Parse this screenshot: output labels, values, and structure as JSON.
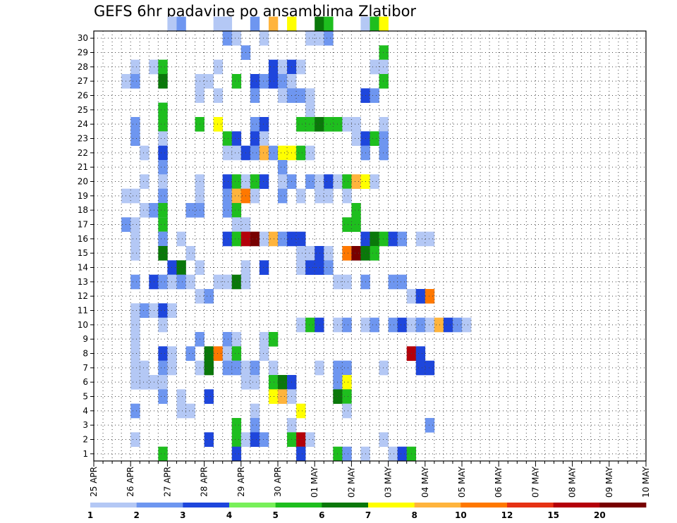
{
  "chart_data": {
    "type": "heatmap",
    "title": "GEFS 6hr padavine po ansamblima Zlatibor",
    "xlabel": "",
    "ylabel": "",
    "y_categories": [
      1,
      2,
      3,
      4,
      5,
      6,
      7,
      8,
      9,
      10,
      11,
      12,
      13,
      14,
      15,
      16,
      17,
      18,
      19,
      20,
      21,
      22,
      23,
      24,
      25,
      26,
      27,
      28,
      29,
      30
    ],
    "x_tick_labels": [
      "25 APR",
      "26 APR",
      "27 APR",
      "28 APR",
      "29 APR",
      "30 APR",
      "01 MAY",
      "02 MAY",
      "03 MAY",
      "04 MAY",
      "05 MAY",
      "06 MAY",
      "07 MAY",
      "08 MAY",
      "09 MAY",
      "10 MAY"
    ],
    "x_unit": "6-hour step from 25 APR 00Z",
    "grid": true,
    "colorbar": {
      "labels": [
        "1",
        "2",
        "3",
        "4",
        "5",
        "6",
        "7",
        "8",
        "10",
        "12",
        "15",
        "20"
      ],
      "colors": [
        "#b4c8f5",
        "#6e96f0",
        "#1e46dc",
        "#78f05a",
        "#1ebe1e",
        "#0a780a",
        "#ffff00",
        "#ffb43c",
        "#ff7800",
        "#e63214",
        "#b4000a",
        "#780000"
      ]
    },
    "cells": [
      [
        8,
        30,
        1
      ],
      [
        9,
        30,
        2
      ],
      [
        13,
        30,
        1
      ],
      [
        14,
        30,
        1
      ],
      [
        17,
        30,
        2
      ],
      [
        19,
        30,
        9
      ],
      [
        21,
        30,
        7
      ],
      [
        24,
        30,
        6
      ],
      [
        25,
        30,
        5
      ],
      [
        29,
        30,
        1
      ],
      [
        30,
        30,
        5
      ],
      [
        31,
        30,
        7
      ],
      [
        14,
        29,
        2
      ],
      [
        15,
        29,
        1
      ],
      [
        18,
        29,
        1
      ],
      [
        23,
        29,
        1
      ],
      [
        24,
        29,
        1
      ],
      [
        25,
        29,
        2
      ],
      [
        16,
        28,
        2
      ],
      [
        31,
        28,
        5
      ],
      [
        4,
        27,
        1
      ],
      [
        6,
        27,
        1
      ],
      [
        7,
        27,
        5
      ],
      [
        13,
        27,
        1
      ],
      [
        19,
        27,
        3
      ],
      [
        20,
        27,
        1
      ],
      [
        21,
        27,
        3
      ],
      [
        22,
        27,
        1
      ],
      [
        30,
        27,
        1
      ],
      [
        31,
        27,
        1
      ],
      [
        3,
        26,
        1
      ],
      [
        4,
        26,
        2
      ],
      [
        7,
        26,
        6
      ],
      [
        11,
        26,
        1
      ],
      [
        12,
        26,
        1
      ],
      [
        15,
        26,
        5
      ],
      [
        17,
        26,
        3
      ],
      [
        18,
        26,
        2
      ],
      [
        19,
        26,
        3
      ],
      [
        20,
        26,
        2
      ],
      [
        21,
        26,
        1
      ],
      [
        31,
        26,
        5
      ],
      [
        11,
        25,
        1
      ],
      [
        13,
        25,
        1
      ],
      [
        17,
        25,
        2
      ],
      [
        20,
        25,
        1
      ],
      [
        21,
        25,
        2
      ],
      [
        22,
        25,
        2
      ],
      [
        23,
        25,
        1
      ],
      [
        29,
        25,
        3
      ],
      [
        30,
        25,
        2
      ],
      [
        7,
        24,
        2
      ],
      [
        7,
        24,
        5
      ],
      [
        23,
        24,
        1
      ],
      [
        4,
        23,
        2
      ],
      [
        7,
        23,
        1
      ],
      [
        7,
        23,
        5
      ],
      [
        11,
        23,
        5
      ],
      [
        13,
        23,
        7
      ],
      [
        17,
        23,
        2
      ],
      [
        18,
        23,
        3
      ],
      [
        22,
        23,
        5
      ],
      [
        23,
        23,
        5
      ],
      [
        24,
        23,
        6
      ],
      [
        25,
        23,
        5
      ],
      [
        26,
        23,
        5
      ],
      [
        27,
        23,
        1
      ],
      [
        28,
        23,
        1
      ],
      [
        31,
        23,
        1
      ],
      [
        4,
        22,
        2
      ],
      [
        7,
        22,
        1
      ],
      [
        14,
        22,
        5
      ],
      [
        15,
        22,
        3
      ],
      [
        17,
        22,
        3
      ],
      [
        18,
        22,
        1
      ],
      [
        28,
        22,
        1
      ],
      [
        29,
        22,
        3
      ],
      [
        30,
        22,
        5
      ],
      [
        31,
        22,
        2
      ],
      [
        5,
        21,
        1
      ],
      [
        7,
        21,
        1
      ],
      [
        7,
        21,
        3
      ],
      [
        14,
        21,
        1
      ],
      [
        15,
        21,
        1
      ],
      [
        16,
        21,
        3
      ],
      [
        17,
        21,
        2
      ],
      [
        18,
        21,
        8
      ],
      [
        19,
        21,
        2
      ],
      [
        20,
        21,
        7
      ],
      [
        21,
        21,
        7
      ],
      [
        22,
        21,
        5
      ],
      [
        23,
        21,
        1
      ],
      [
        29,
        21,
        2
      ],
      [
        31,
        21,
        2
      ],
      [
        7,
        20,
        2
      ],
      [
        20,
        20,
        2
      ],
      [
        5,
        19,
        1
      ],
      [
        7,
        19,
        1
      ],
      [
        11,
        19,
        1
      ],
      [
        14,
        19,
        3
      ],
      [
        15,
        19,
        5
      ],
      [
        16,
        19,
        1
      ],
      [
        17,
        19,
        5
      ],
      [
        18,
        19,
        3
      ],
      [
        20,
        19,
        1
      ],
      [
        21,
        19,
        2
      ],
      [
        23,
        19,
        2
      ],
      [
        24,
        19,
        1
      ],
      [
        25,
        19,
        3
      ],
      [
        26,
        19,
        1
      ],
      [
        27,
        19,
        5
      ],
      [
        28,
        19,
        8
      ],
      [
        29,
        19,
        7
      ],
      [
        30,
        19,
        1
      ],
      [
        3,
        18,
        1
      ],
      [
        4,
        18,
        1
      ],
      [
        7,
        18,
        1
      ],
      [
        7,
        18,
        2
      ],
      [
        11,
        18,
        1
      ],
      [
        14,
        18,
        2
      ],
      [
        15,
        18,
        8
      ],
      [
        16,
        18,
        10
      ],
      [
        17,
        18,
        1
      ],
      [
        20,
        18,
        2
      ],
      [
        22,
        18,
        1
      ],
      [
        24,
        18,
        1
      ],
      [
        25,
        18,
        1
      ],
      [
        27,
        18,
        1
      ],
      [
        5,
        17,
        1
      ],
      [
        6,
        17,
        2
      ],
      [
        7,
        17,
        1
      ],
      [
        7,
        17,
        5
      ],
      [
        10,
        17,
        2
      ],
      [
        11,
        17,
        2
      ],
      [
        14,
        17,
        2
      ],
      [
        15,
        17,
        5
      ],
      [
        28,
        17,
        5
      ],
      [
        3,
        16,
        2
      ],
      [
        4,
        16,
        1
      ],
      [
        7,
        16,
        1
      ],
      [
        7,
        16,
        5
      ],
      [
        15,
        16,
        1
      ],
      [
        16,
        16,
        1
      ],
      [
        27,
        16,
        5
      ],
      [
        28,
        16,
        5
      ],
      [
        4,
        15,
        1
      ],
      [
        7,
        15,
        1
      ],
      [
        7,
        15,
        2
      ],
      [
        9,
        15,
        1
      ],
      [
        14,
        15,
        3
      ],
      [
        15,
        15,
        5
      ],
      [
        16,
        15,
        15
      ],
      [
        17,
        15,
        20
      ],
      [
        18,
        15,
        1
      ],
      [
        19,
        15,
        8
      ],
      [
        20,
        15,
        2
      ],
      [
        21,
        15,
        3
      ],
      [
        22,
        15,
        3
      ],
      [
        29,
        15,
        3
      ],
      [
        30,
        15,
        6
      ],
      [
        31,
        15,
        5
      ],
      [
        32,
        15,
        3
      ],
      [
        33,
        15,
        2
      ],
      [
        35,
        15,
        1
      ],
      [
        36,
        15,
        1
      ],
      [
        4,
        14,
        1
      ],
      [
        7,
        14,
        6
      ],
      [
        10,
        14,
        1
      ],
      [
        22,
        14,
        1
      ],
      [
        23,
        14,
        1
      ],
      [
        24,
        14,
        3
      ],
      [
        25,
        14,
        1
      ],
      [
        27,
        14,
        10
      ],
      [
        28,
        14,
        20
      ],
      [
        29,
        14,
        6
      ],
      [
        30,
        14,
        5
      ],
      [
        8,
        13,
        3
      ],
      [
        9,
        13,
        6
      ],
      [
        11,
        13,
        1
      ],
      [
        16,
        13,
        1
      ],
      [
        18,
        13,
        3
      ],
      [
        22,
        13,
        1
      ],
      [
        23,
        13,
        3
      ],
      [
        24,
        13,
        3
      ],
      [
        25,
        13,
        2
      ],
      [
        4,
        12,
        2
      ],
      [
        6,
        12,
        3
      ],
      [
        7,
        12,
        2
      ],
      [
        8,
        12,
        1
      ],
      [
        9,
        12,
        2
      ],
      [
        10,
        12,
        1
      ],
      [
        13,
        12,
        1
      ],
      [
        14,
        12,
        1
      ],
      [
        15,
        12,
        6
      ],
      [
        16,
        12,
        1
      ],
      [
        26,
        12,
        1
      ],
      [
        27,
        12,
        1
      ],
      [
        29,
        12,
        2
      ],
      [
        32,
        12,
        2
      ],
      [
        33,
        12,
        2
      ],
      [
        11,
        11,
        1
      ],
      [
        12,
        11,
        2
      ],
      [
        34,
        11,
        1
      ],
      [
        35,
        11,
        3
      ],
      [
        36,
        11,
        10
      ],
      [
        4,
        10,
        1
      ],
      [
        5,
        10,
        2
      ],
      [
        6,
        10,
        1
      ],
      [
        7,
        10,
        3
      ],
      [
        8,
        10,
        1
      ],
      [
        4,
        9,
        1
      ],
      [
        7,
        9,
        1
      ],
      [
        22,
        9,
        1
      ],
      [
        23,
        9,
        5
      ],
      [
        24,
        9,
        3
      ],
      [
        26,
        9,
        1
      ],
      [
        27,
        9,
        2
      ],
      [
        29,
        9,
        1
      ],
      [
        30,
        9,
        2
      ],
      [
        32,
        9,
        2
      ],
      [
        33,
        9,
        3
      ],
      [
        34,
        9,
        1
      ],
      [
        35,
        9,
        2
      ],
      [
        36,
        9,
        1
      ],
      [
        37,
        9,
        8
      ],
      [
        38,
        9,
        3
      ],
      [
        39,
        9,
        2
      ],
      [
        40,
        9,
        1
      ],
      [
        4,
        8,
        1
      ],
      [
        11,
        8,
        2
      ],
      [
        14,
        8,
        2
      ],
      [
        15,
        8,
        1
      ],
      [
        18,
        8,
        1
      ],
      [
        19,
        8,
        5
      ],
      [
        4,
        7,
        1
      ],
      [
        7,
        7,
        3
      ],
      [
        8,
        7,
        1
      ],
      [
        10,
        7,
        2
      ],
      [
        12,
        7,
        6
      ],
      [
        13,
        7,
        10
      ],
      [
        14,
        7,
        1
      ],
      [
        15,
        7,
        5
      ],
      [
        18,
        7,
        1
      ],
      [
        34,
        7,
        15
      ],
      [
        35,
        7,
        3
      ],
      [
        4,
        6,
        1
      ],
      [
        5,
        6,
        1
      ],
      [
        7,
        6,
        2
      ],
      [
        8,
        6,
        1
      ],
      [
        11,
        6,
        1
      ],
      [
        12,
        6,
        6
      ],
      [
        14,
        6,
        2
      ],
      [
        15,
        6,
        2
      ],
      [
        16,
        6,
        1
      ],
      [
        17,
        6,
        2
      ],
      [
        19,
        6,
        1
      ],
      [
        24,
        6,
        1
      ],
      [
        26,
        6,
        2
      ],
      [
        27,
        6,
        2
      ],
      [
        31,
        6,
        1
      ],
      [
        35,
        6,
        3
      ],
      [
        36,
        6,
        3
      ],
      [
        4,
        5,
        1
      ],
      [
        5,
        5,
        1
      ],
      [
        6,
        5,
        1
      ],
      [
        7,
        5,
        1
      ],
      [
        16,
        5,
        1
      ],
      [
        17,
        5,
        1
      ],
      [
        19,
        5,
        5
      ],
      [
        20,
        5,
        6
      ],
      [
        21,
        5,
        3
      ],
      [
        26,
        5,
        2
      ],
      [
        27,
        5,
        7
      ],
      [
        7,
        4,
        2
      ],
      [
        9,
        4,
        1
      ],
      [
        12,
        4,
        3
      ],
      [
        19,
        4,
        7
      ],
      [
        20,
        4,
        8
      ],
      [
        21,
        4,
        1
      ],
      [
        26,
        4,
        6
      ],
      [
        27,
        4,
        5
      ],
      [
        4,
        3,
        2
      ],
      [
        9,
        3,
        1
      ],
      [
        10,
        3,
        1
      ],
      [
        17,
        3,
        1
      ],
      [
        22,
        3,
        7
      ],
      [
        27,
        3,
        1
      ],
      [
        15,
        2,
        5
      ],
      [
        17,
        2,
        2
      ],
      [
        21,
        2,
        1
      ],
      [
        36,
        2,
        2
      ],
      [
        4,
        1,
        1
      ],
      [
        12,
        1,
        3
      ],
      [
        15,
        1,
        5
      ],
      [
        16,
        1,
        1
      ],
      [
        17,
        1,
        3
      ],
      [
        18,
        1,
        2
      ],
      [
        21,
        1,
        5
      ],
      [
        22,
        1,
        15
      ],
      [
        23,
        1,
        1
      ],
      [
        31,
        1,
        1
      ],
      [
        7,
        0,
        5
      ],
      [
        15,
        0,
        3
      ],
      [
        22,
        0,
        3
      ],
      [
        26,
        0,
        5
      ],
      [
        27,
        0,
        2
      ],
      [
        29,
        0,
        1
      ],
      [
        32,
        0,
        1
      ],
      [
        33,
        0,
        3
      ],
      [
        34,
        0,
        5
      ]
    ]
  }
}
